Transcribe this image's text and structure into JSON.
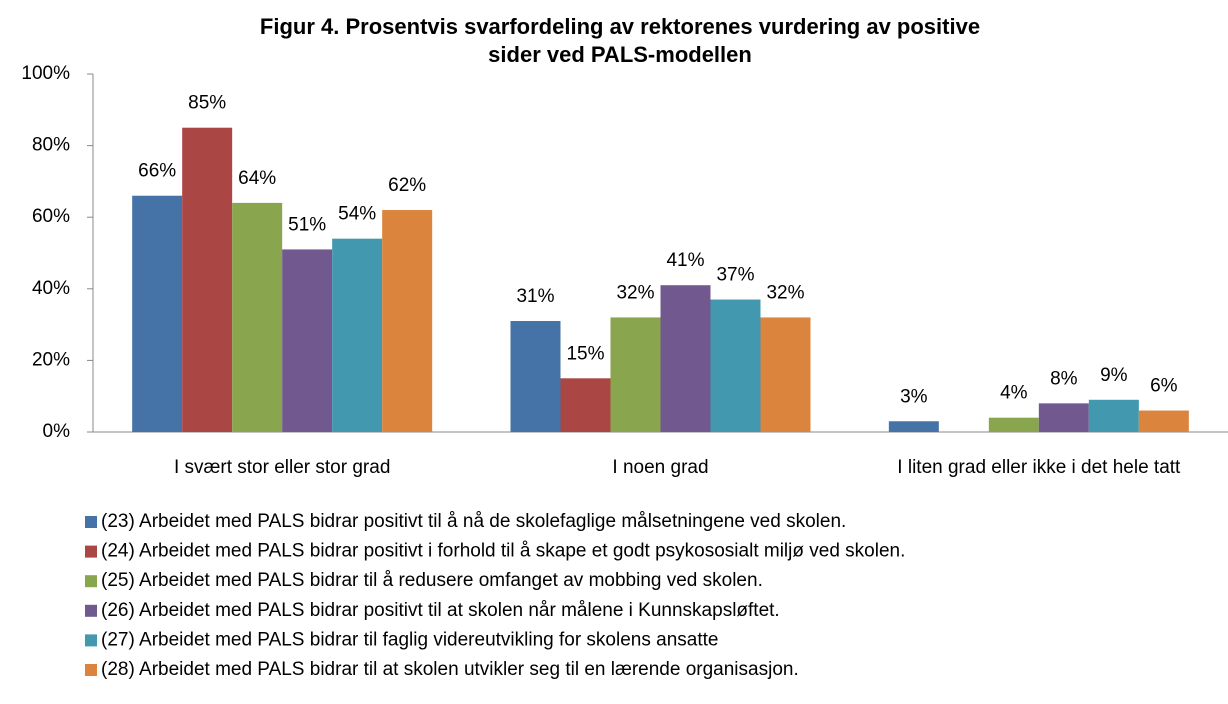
{
  "chart_data": {
    "type": "bar",
    "title": [
      "Figur 4. Prosentvis svarfordeling av rektorenes vurdering av positive",
      "sider ved PALS-modellen"
    ],
    "categories": [
      "I svært stor eller stor grad",
      "I noen grad",
      "I liten grad eller ikke i det hele tatt"
    ],
    "series": [
      {
        "name": "(23) Arbeidet med PALS bidrar positivt til å nå de skolefaglige målsetningene ved skolen.",
        "color": "#4572a7",
        "values": [
          66,
          31,
          3
        ],
        "value_labels": [
          "66%",
          "31%",
          "3%"
        ]
      },
      {
        "name": "(24) Arbeidet med PALS bidrar positivt i forhold til å skape et godt psykososialt miljø ved skolen.",
        "color": "#aa4643",
        "values": [
          85,
          15,
          null
        ],
        "value_labels": [
          "85%",
          "15%",
          null
        ]
      },
      {
        "name": "(25) Arbeidet med PALS bidrar til å redusere omfanget av mobbing ved skolen.",
        "color": "#89a54e",
        "values": [
          64,
          32,
          4
        ],
        "value_labels": [
          "64%",
          "32%",
          "4%"
        ]
      },
      {
        "name": "(26) Arbeidet med PALS bidrar positivt til at skolen når målene i Kunnskapsløftet.",
        "color": "#71588f",
        "values": [
          51,
          41,
          8
        ],
        "value_labels": [
          "51%",
          "41%",
          "8%"
        ]
      },
      {
        "name": "(27) Arbeidet med PALS bidrar til faglig videreutvikling for skolens ansatte",
        "color": "#4198af",
        "values": [
          54,
          37,
          9
        ],
        "value_labels": [
          "54%",
          "37%",
          "9%"
        ]
      },
      {
        "name": "(28) Arbeidet med PALS bidrar til at skolen utvikler seg til en lærende organisasjon.",
        "color": "#db843d",
        "values": [
          62,
          32,
          6
        ],
        "value_labels": [
          "62%",
          "32%",
          "6%"
        ]
      }
    ],
    "ylim": [
      0,
      100
    ],
    "yticks": [
      {
        "value": 0,
        "label": "0%"
      },
      {
        "value": 20,
        "label": "20%"
      },
      {
        "value": 40,
        "label": "40%"
      },
      {
        "value": 60,
        "label": "60%"
      },
      {
        "value": 80,
        "label": "80%"
      },
      {
        "value": 100,
        "label": "100%"
      }
    ],
    "legend": "bottom-left"
  }
}
